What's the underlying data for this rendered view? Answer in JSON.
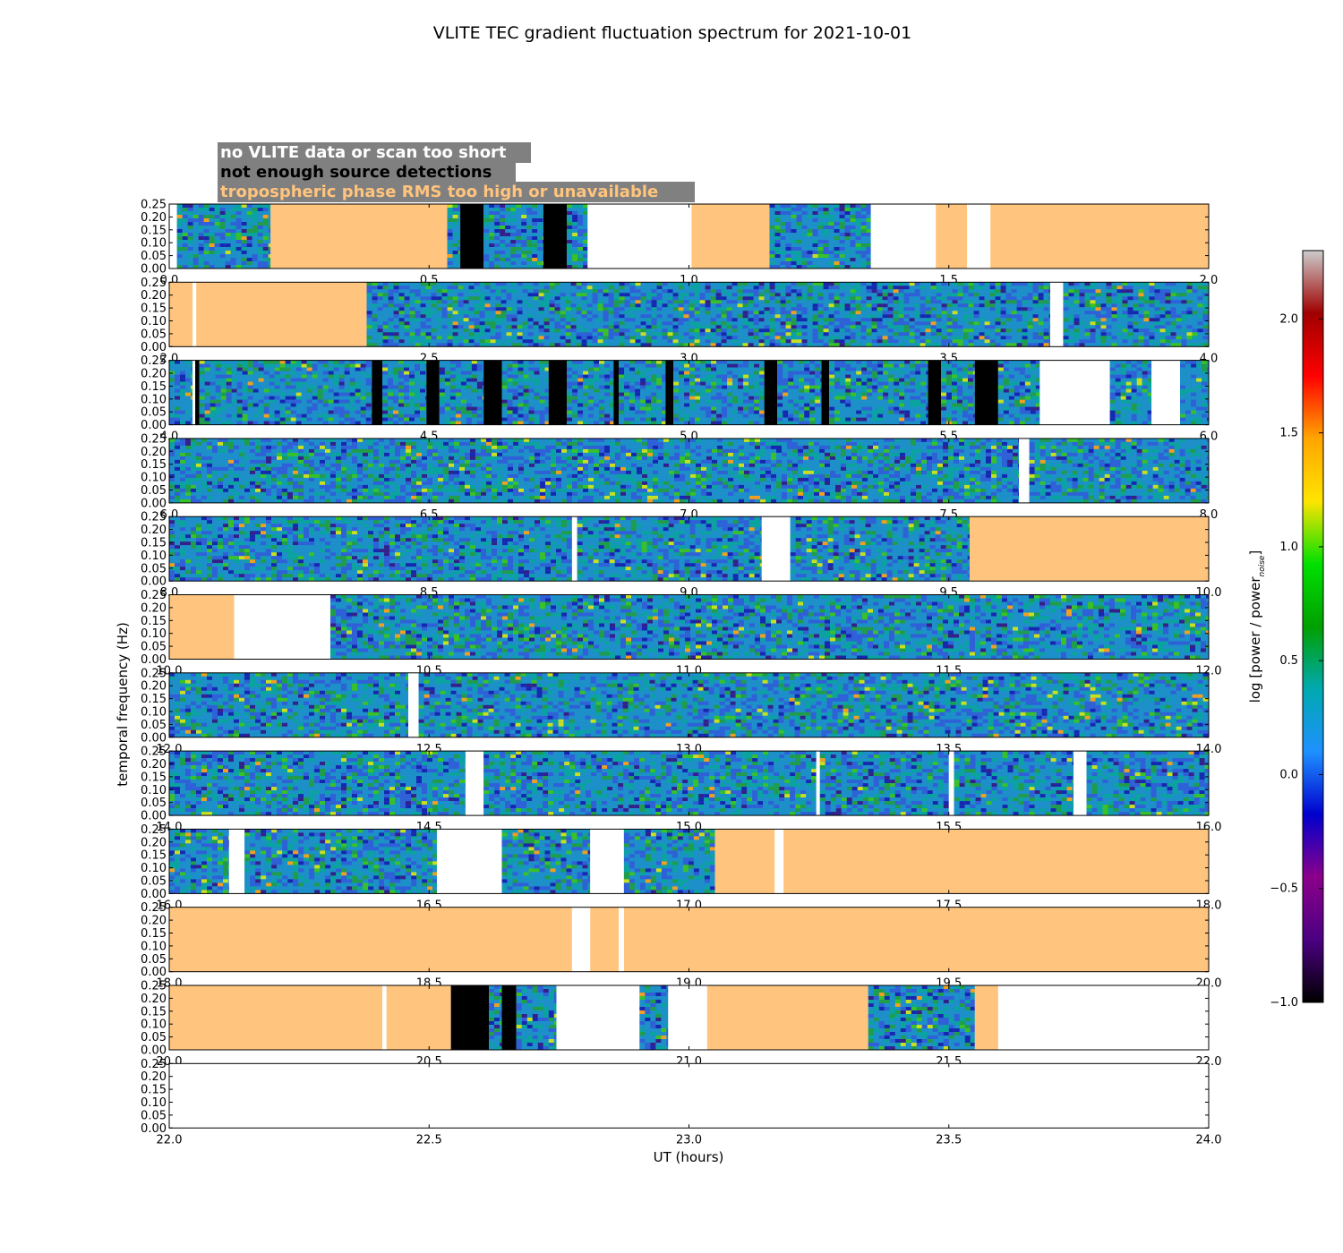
{
  "chart_data": {
    "type": "heatmap",
    "title": "VLITE TEC gradient fluctuation spectrum for 2021-10-01",
    "xlabel": "UT (hours)",
    "ylabel": "temporal frequency (Hz)",
    "colorbar_label": "log [power / power",
    "colorbar_label_sub": "noise",
    "colorbar_label_end": "]",
    "colorbar_range": [
      -1.0,
      2.3
    ],
    "colorbar_ticks": [
      "-1.0",
      "-0.5",
      "0.0",
      "0.5",
      "1.0",
      "1.5",
      "2.0"
    ],
    "colormap": [
      "#000000",
      "#4b0082",
      "#8b008b",
      "#0000cd",
      "#1e90ff",
      "#00a9b0",
      "#00a000",
      "#00e000",
      "#ffe400",
      "#ffa500",
      "#ff0000",
      "#a00000",
      "#cccccc"
    ],
    "ylim": [
      0.0,
      0.25
    ],
    "y_ticks": [
      "0.00",
      "0.05",
      "0.10",
      "0.15",
      "0.20",
      "0.25"
    ],
    "legend": [
      {
        "label": "no VLITE data or scan too short",
        "color": "#ffffff"
      },
      {
        "label": "not enough source detections",
        "color": "#000000"
      },
      {
        "label": "tropospheric phase RMS too high or unavailable",
        "color": "#ffc47d"
      }
    ],
    "legend_background": "#808080",
    "flag_colors": {
      "nodata": "#ffffff",
      "nodet": "#000000",
      "tropo": "#ffc47d"
    },
    "panels": [
      {
        "xlim": [
          0.0,
          2.0
        ],
        "xticks": [
          "0.0",
          "0.5",
          "1.0",
          "1.5",
          "2.0"
        ],
        "segments": [
          [
            0.0,
            0.015,
            "nodata"
          ],
          [
            0.015,
            0.195,
            "data"
          ],
          [
            0.195,
            0.535,
            "tropo"
          ],
          [
            0.535,
            0.56,
            "data"
          ],
          [
            0.56,
            0.605,
            "nodet"
          ],
          [
            0.605,
            0.72,
            "data"
          ],
          [
            0.72,
            0.765,
            "nodet"
          ],
          [
            0.765,
            0.805,
            "data"
          ],
          [
            0.805,
            1.005,
            "nodata"
          ],
          [
            1.005,
            1.155,
            "tropo"
          ],
          [
            1.155,
            1.35,
            "data"
          ],
          [
            1.35,
            1.475,
            "nodata"
          ],
          [
            1.475,
            1.535,
            "tropo"
          ],
          [
            1.535,
            1.58,
            "nodata"
          ],
          [
            1.58,
            2.0,
            "tropo"
          ]
        ]
      },
      {
        "xlim": [
          2.0,
          4.0
        ],
        "xticks": [
          "2.0",
          "2.5",
          "3.0",
          "3.5",
          "4.0"
        ],
        "segments": [
          [
            2.0,
            2.045,
            "tropo"
          ],
          [
            2.045,
            2.052,
            "nodata"
          ],
          [
            2.052,
            2.38,
            "tropo"
          ],
          [
            2.38,
            3.695,
            "data"
          ],
          [
            3.695,
            3.72,
            "nodata"
          ],
          [
            3.72,
            4.0,
            "data"
          ]
        ]
      },
      {
        "xlim": [
          4.0,
          6.0
        ],
        "xticks": [
          "4.0",
          "4.5",
          "5.0",
          "5.5",
          "6.0"
        ],
        "segments": [
          [
            4.0,
            4.045,
            "data"
          ],
          [
            4.045,
            4.05,
            "nodata"
          ],
          [
            4.05,
            4.058,
            "nodet"
          ],
          [
            4.058,
            4.39,
            "data"
          ],
          [
            4.39,
            4.41,
            "nodet"
          ],
          [
            4.41,
            4.495,
            "data"
          ],
          [
            4.495,
            4.52,
            "nodet"
          ],
          [
            4.52,
            4.605,
            "data"
          ],
          [
            4.605,
            4.64,
            "nodet"
          ],
          [
            4.64,
            4.73,
            "data"
          ],
          [
            4.73,
            4.765,
            "nodet"
          ],
          [
            4.765,
            4.855,
            "data"
          ],
          [
            4.855,
            4.865,
            "nodet"
          ],
          [
            4.865,
            4.955,
            "data"
          ],
          [
            4.955,
            4.97,
            "nodet"
          ],
          [
            4.97,
            5.145,
            "data"
          ],
          [
            5.145,
            5.17,
            "nodet"
          ],
          [
            5.17,
            5.255,
            "data"
          ],
          [
            5.255,
            5.27,
            "nodet"
          ],
          [
            5.27,
            5.46,
            "data"
          ],
          [
            5.46,
            5.485,
            "nodet"
          ],
          [
            5.485,
            5.55,
            "data"
          ],
          [
            5.55,
            5.595,
            "nodet"
          ],
          [
            5.595,
            5.675,
            "data"
          ],
          [
            5.675,
            5.81,
            "nodata"
          ],
          [
            5.81,
            5.89,
            "data"
          ],
          [
            5.89,
            5.945,
            "nodata"
          ],
          [
            5.945,
            6.0,
            "data"
          ]
        ]
      },
      {
        "xlim": [
          6.0,
          8.0
        ],
        "xticks": [
          "6.0",
          "6.5",
          "7.0",
          "7.5",
          "8.0"
        ],
        "segments": [
          [
            6.0,
            7.635,
            "data"
          ],
          [
            7.635,
            7.655,
            "nodata"
          ],
          [
            7.655,
            8.0,
            "data"
          ]
        ]
      },
      {
        "xlim": [
          8.0,
          10.0
        ],
        "xticks": [
          "8.0",
          "8.5",
          "9.0",
          "9.5",
          "10.0"
        ],
        "segments": [
          [
            8.0,
            8.775,
            "data"
          ],
          [
            8.775,
            8.785,
            "nodata"
          ],
          [
            8.785,
            9.14,
            "data"
          ],
          [
            9.14,
            9.195,
            "nodata"
          ],
          [
            9.195,
            9.54,
            "data"
          ],
          [
            9.54,
            10.0,
            "tropo"
          ]
        ]
      },
      {
        "xlim": [
          10.0,
          12.0
        ],
        "xticks": [
          "10.0",
          "10.5",
          "11.0",
          "11.5",
          "12.0"
        ],
        "segments": [
          [
            10.0,
            10.125,
            "tropo"
          ],
          [
            10.125,
            10.31,
            "nodata"
          ],
          [
            10.31,
            12.0,
            "data"
          ]
        ]
      },
      {
        "xlim": [
          12.0,
          14.0
        ],
        "xticks": [
          "12.0",
          "12.5",
          "13.0",
          "13.5",
          "14.0"
        ],
        "segments": [
          [
            12.0,
            12.46,
            "data"
          ],
          [
            12.46,
            12.48,
            "nodata"
          ],
          [
            12.48,
            14.0,
            "data"
          ]
        ]
      },
      {
        "xlim": [
          14.0,
          16.0
        ],
        "xticks": [
          "14.0",
          "14.5",
          "15.0",
          "15.5",
          "16.0"
        ],
        "segments": [
          [
            14.0,
            14.57,
            "data"
          ],
          [
            14.57,
            14.605,
            "nodata"
          ],
          [
            14.605,
            15.245,
            "data"
          ],
          [
            15.245,
            15.252,
            "nodata"
          ],
          [
            15.252,
            15.5,
            "data"
          ],
          [
            15.5,
            15.51,
            "nodata"
          ],
          [
            15.51,
            15.74,
            "data"
          ],
          [
            15.74,
            15.765,
            "nodata"
          ],
          [
            15.765,
            16.0,
            "data"
          ]
        ]
      },
      {
        "xlim": [
          16.0,
          18.0
        ],
        "xticks": [
          "16.0",
          "16.5",
          "17.0",
          "17.5",
          "18.0"
        ],
        "segments": [
          [
            16.0,
            16.115,
            "data"
          ],
          [
            16.115,
            16.145,
            "nodata"
          ],
          [
            16.145,
            16.515,
            "data"
          ],
          [
            16.515,
            16.64,
            "nodata"
          ],
          [
            16.64,
            16.81,
            "data"
          ],
          [
            16.81,
            16.875,
            "nodata"
          ],
          [
            16.875,
            17.05,
            "data"
          ],
          [
            17.05,
            17.165,
            "tropo"
          ],
          [
            17.165,
            17.182,
            "nodata"
          ],
          [
            17.182,
            18.0,
            "tropo"
          ]
        ]
      },
      {
        "xlim": [
          18.0,
          20.0
        ],
        "xticks": [
          "18.0",
          "18.5",
          "19.0",
          "19.5",
          "20.0"
        ],
        "segments": [
          [
            18.0,
            18.775,
            "tropo"
          ],
          [
            18.775,
            18.81,
            "nodata"
          ],
          [
            18.81,
            18.865,
            "tropo"
          ],
          [
            18.865,
            18.875,
            "nodata"
          ],
          [
            18.875,
            20.0,
            "tropo"
          ]
        ]
      },
      {
        "xlim": [
          20.0,
          22.0
        ],
        "xticks": [
          "20.0",
          "20.5",
          "21.0",
          "21.5",
          "22.0"
        ],
        "segments": [
          [
            20.0,
            20.41,
            "tropo"
          ],
          [
            20.41,
            20.418,
            "nodata"
          ],
          [
            20.418,
            20.542,
            "tropo"
          ],
          [
            20.542,
            20.615,
            "nodet"
          ],
          [
            20.615,
            20.64,
            "data"
          ],
          [
            20.64,
            20.668,
            "nodet"
          ],
          [
            20.668,
            20.745,
            "data"
          ],
          [
            20.745,
            20.905,
            "nodata"
          ],
          [
            20.905,
            20.96,
            "data"
          ],
          [
            20.96,
            21.035,
            "nodata"
          ],
          [
            21.035,
            21.345,
            "tropo"
          ],
          [
            21.345,
            21.55,
            "data"
          ],
          [
            21.55,
            21.595,
            "tropo"
          ],
          [
            21.595,
            22.0,
            "nodata"
          ]
        ]
      },
      {
        "xlim": [
          22.0,
          24.0
        ],
        "xticks": [
          "22.0",
          "22.5",
          "23.0",
          "23.5",
          "24.0"
        ],
        "segments": [
          [
            22.0,
            24.0,
            "nodata"
          ]
        ]
      }
    ]
  }
}
